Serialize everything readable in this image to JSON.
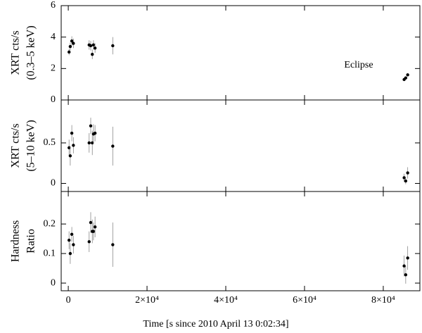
{
  "chart_data": [
    {
      "type": "scatter",
      "ylabel": [
        "XRT cts/s",
        "(0.3–5 keV)"
      ],
      "annotation": "Eclipse",
      "x": [
        200,
        500,
        900,
        1300,
        5300,
        5700,
        6100,
        6400,
        6800,
        11300,
        85300,
        85700,
        86200
      ],
      "values": [
        3.05,
        3.4,
        3.75,
        3.6,
        3.5,
        3.45,
        2.9,
        3.5,
        3.3,
        3.45,
        1.3,
        1.4,
        1.6
      ],
      "errors": [
        0.2,
        0.25,
        0.3,
        0.3,
        0.3,
        0.3,
        0.3,
        0.3,
        0.3,
        0.55,
        0.1,
        0.1,
        0.1
      ],
      "xlim": [
        -1800,
        89300
      ],
      "ylim": [
        0,
        6
      ],
      "yticks": [
        0,
        2,
        4,
        6
      ],
      "color": "#000000"
    },
    {
      "type": "scatter",
      "ylabel": [
        "XRT cts/s",
        "(5–10 keV)"
      ],
      "x": [
        200,
        500,
        900,
        1300,
        5300,
        5700,
        6100,
        6400,
        6800,
        11300,
        85300,
        85700,
        86200
      ],
      "values": [
        0.44,
        0.34,
        0.62,
        0.47,
        0.5,
        0.71,
        0.5,
        0.61,
        0.62,
        0.46,
        0.07,
        0.03,
        0.13
      ],
      "errors": [
        0.1,
        0.12,
        0.1,
        0.1,
        0.12,
        0.1,
        0.15,
        0.12,
        0.1,
        0.24,
        0.05,
        0.04,
        0.07
      ],
      "xlim": [
        -1800,
        89300
      ],
      "ylim": [
        -0.1,
        1.03
      ],
      "yticks": [
        0,
        0.5
      ],
      "color": "#000000"
    },
    {
      "type": "scatter",
      "ylabel": [
        "Hardness",
        "Ratio"
      ],
      "xlabel": "Time [s since 2010 April 13  0:02:34]",
      "x": [
        200,
        500,
        900,
        1300,
        5300,
        5700,
        6100,
        6400,
        6800,
        11300,
        85300,
        85700,
        86200
      ],
      "values": [
        0.145,
        0.1,
        0.165,
        0.13,
        0.14,
        0.205,
        0.175,
        0.175,
        0.19,
        0.13,
        0.058,
        0.028,
        0.085
      ],
      "errors": [
        0.03,
        0.035,
        0.025,
        0.03,
        0.035,
        0.035,
        0.04,
        0.03,
        0.035,
        0.075,
        0.035,
        0.03,
        0.04
      ],
      "xlim": [
        -1800,
        89300
      ],
      "ylim": [
        -0.026,
        0.31
      ],
      "yticks": [
        0,
        0.1,
        0.2
      ],
      "xticks": [
        0,
        {
          "value": 20000,
          "label": "2×10⁴"
        },
        {
          "value": 40000,
          "label": "4×10⁴"
        },
        {
          "value": 60000,
          "label": "6×10⁴"
        },
        {
          "value": 80000,
          "label": "8×10⁴"
        }
      ],
      "color": "#000000"
    }
  ]
}
